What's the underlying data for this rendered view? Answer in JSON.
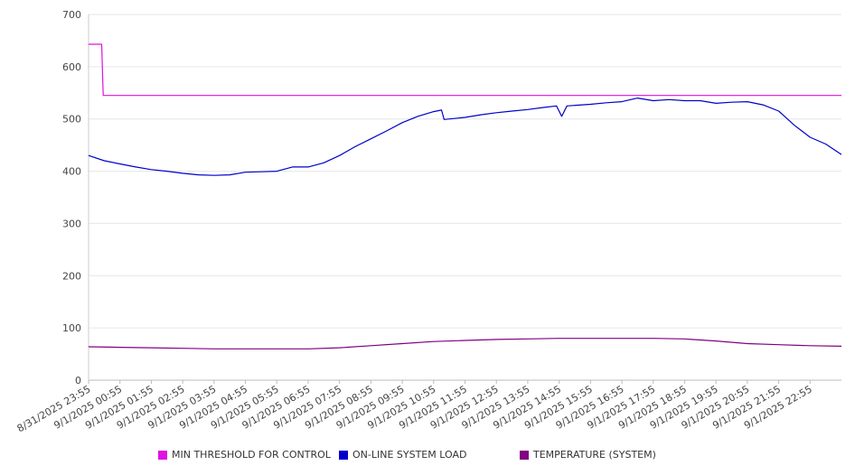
{
  "chart_data": {
    "type": "line",
    "ylim": [
      0,
      700
    ],
    "yticks": [
      0,
      100,
      200,
      300,
      400,
      500,
      600,
      700
    ],
    "grid": true,
    "legend_position": "bottom",
    "x_tick_labels": [
      "8/31/2025 23:55",
      "9/1/2025 00:55",
      "9/1/2025 01:55",
      "9/1/2025 02:55",
      "9/1/2025 03:55",
      "9/1/2025 04:55",
      "9/1/2025 05:55",
      "9/1/2025 06:55",
      "9/1/2025 07:55",
      "9/1/2025 08:55",
      "9/1/2025 09:55",
      "9/1/2025 10:55",
      "9/1/2025 11:55",
      "9/1/2025 12:55",
      "9/1/2025 13:55",
      "9/1/2025 14:55",
      "9/1/2025 15:55",
      "9/1/2025 16:55",
      "9/1/2025 17:55",
      "9/1/2025 18:55",
      "9/1/2025 19:55",
      "9/1/2025 20:55",
      "9/1/2025 21:55",
      "9/1/2025 22:55"
    ],
    "x_range": [
      "8/31/2025 23:55",
      "9/1/2025 23:55"
    ],
    "series": [
      {
        "name": "MIN THRESHOLD FOR CONTROL",
        "color": "#e010e0",
        "points": [
          [
            "8/31/2025 23:55",
            643
          ],
          [
            "9/1/2025 00:20",
            643
          ],
          [
            "9/1/2025 00:23",
            545
          ],
          [
            "9/1/2025 23:55",
            545
          ]
        ]
      },
      {
        "name": "ON-LINE SYSTEM LOAD",
        "color": "#0000cc",
        "points": [
          [
            "8/31/2025 23:55",
            430
          ],
          [
            "9/1/2025 00:25",
            420
          ],
          [
            "9/1/2025 00:55",
            414
          ],
          [
            "9/1/2025 01:25",
            408
          ],
          [
            "9/1/2025 01:55",
            403
          ],
          [
            "9/1/2025 02:25",
            400
          ],
          [
            "9/1/2025 02:55",
            396
          ],
          [
            "9/1/2025 03:25",
            393
          ],
          [
            "9/1/2025 03:55",
            392
          ],
          [
            "9/1/2025 04:25",
            393
          ],
          [
            "9/1/2025 04:55",
            398
          ],
          [
            "9/1/2025 05:25",
            399
          ],
          [
            "9/1/2025 05:55",
            400
          ],
          [
            "9/1/2025 06:25",
            408
          ],
          [
            "9/1/2025 06:55",
            408
          ],
          [
            "9/1/2025 07:25",
            416
          ],
          [
            "9/1/2025 07:55",
            430
          ],
          [
            "9/1/2025 08:25",
            447
          ],
          [
            "9/1/2025 08:55",
            462
          ],
          [
            "9/1/2025 09:25",
            477
          ],
          [
            "9/1/2025 09:55",
            493
          ],
          [
            "9/1/2025 10:25",
            505
          ],
          [
            "9/1/2025 10:55",
            514
          ],
          [
            "9/1/2025 11:10",
            517
          ],
          [
            "9/1/2025 11:15",
            499
          ],
          [
            "9/1/2025 11:55",
            503
          ],
          [
            "9/1/2025 12:25",
            508
          ],
          [
            "9/1/2025 12:55",
            512
          ],
          [
            "9/1/2025 13:25",
            515
          ],
          [
            "9/1/2025 13:55",
            518
          ],
          [
            "9/1/2025 14:25",
            522
          ],
          [
            "9/1/2025 14:50",
            525
          ],
          [
            "9/1/2025 15:00",
            505
          ],
          [
            "9/1/2025 15:10",
            525
          ],
          [
            "9/1/2025 15:55",
            528
          ],
          [
            "9/1/2025 16:25",
            531
          ],
          [
            "9/1/2025 16:55",
            533
          ],
          [
            "9/1/2025 17:25",
            540
          ],
          [
            "9/1/2025 17:55",
            535
          ],
          [
            "9/1/2025 18:25",
            537
          ],
          [
            "9/1/2025 18:55",
            535
          ],
          [
            "9/1/2025 19:25",
            535
          ],
          [
            "9/1/2025 19:55",
            530
          ],
          [
            "9/1/2025 20:25",
            532
          ],
          [
            "9/1/2025 20:55",
            533
          ],
          [
            "9/1/2025 21:25",
            527
          ],
          [
            "9/1/2025 21:55",
            515
          ],
          [
            "9/1/2025 22:25",
            488
          ],
          [
            "9/1/2025 22:55",
            465
          ],
          [
            "9/1/2025 23:25",
            452
          ],
          [
            "9/1/2025 23:55",
            432
          ]
        ]
      },
      {
        "name": "TEMPERATURE (SYSTEM)",
        "color": "#800080",
        "points": [
          [
            "8/31/2025 23:55",
            64
          ],
          [
            "9/1/2025 00:55",
            63
          ],
          [
            "9/1/2025 01:55",
            62
          ],
          [
            "9/1/2025 02:55",
            61
          ],
          [
            "9/1/2025 03:55",
            60
          ],
          [
            "9/1/2025 04:55",
            60
          ],
          [
            "9/1/2025 05:55",
            60
          ],
          [
            "9/1/2025 06:55",
            60
          ],
          [
            "9/1/2025 07:55",
            62
          ],
          [
            "9/1/2025 08:55",
            66
          ],
          [
            "9/1/2025 09:55",
            70
          ],
          [
            "9/1/2025 10:55",
            74
          ],
          [
            "9/1/2025 11:55",
            76
          ],
          [
            "9/1/2025 12:55",
            78
          ],
          [
            "9/1/2025 13:55",
            79
          ],
          [
            "9/1/2025 14:55",
            80
          ],
          [
            "9/1/2025 15:55",
            80
          ],
          [
            "9/1/2025 16:55",
            80
          ],
          [
            "9/1/2025 17:55",
            80
          ],
          [
            "9/1/2025 18:55",
            79
          ],
          [
            "9/1/2025 19:55",
            75
          ],
          [
            "9/1/2025 20:55",
            70
          ],
          [
            "9/1/2025 21:55",
            68
          ],
          [
            "9/1/2025 22:55",
            66
          ],
          [
            "9/1/2025 23:55",
            65
          ]
        ]
      }
    ]
  },
  "legend": {
    "items": [
      {
        "label": "MIN THRESHOLD FOR CONTROL",
        "color": "#e010e0"
      },
      {
        "label": "ON-LINE SYSTEM LOAD",
        "color": "#0000cc"
      },
      {
        "label": "TEMPERATURE (SYSTEM)",
        "color": "#800080"
      }
    ]
  }
}
